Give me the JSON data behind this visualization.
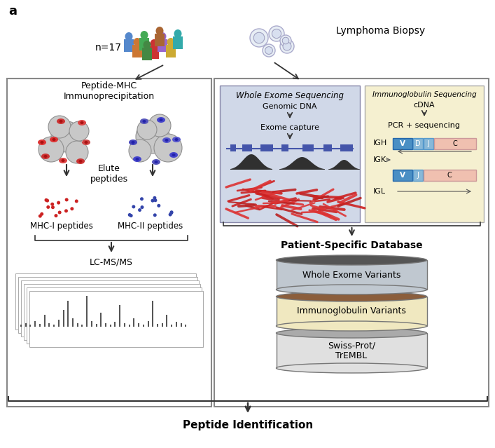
{
  "bg_color": "#ffffff",
  "panel_label": "a",
  "title_bottom": "Peptide Identification",
  "n_label": "n=17",
  "lymphoma_label": "Lymphoma Biopsy",
  "left_box_title": "Peptide-MHC\nImmunoprecipitation",
  "elute_label": "Elute\npeptides",
  "mhc1_label": "MHC-I peptides",
  "mhc2_label": "MHC-II peptides",
  "lcms_label": "LC-MS/MS",
  "wes_title": "Whole Exome Sequencing",
  "wes_line1": "Genomic DNA",
  "wes_line2": "Exome capture",
  "wes_bg": "#d0d8e8",
  "ig_title": "Immunoglobulin Sequencing",
  "ig_line1": "cDNA",
  "ig_line2": "PCR + sequencing",
  "ig_bg": "#f5f0d0",
  "igh": "IGH",
  "igk": "IGK",
  "igl": "IGL",
  "db_title": "Patient-Specific Database",
  "db_layer1": "Whole Exome Variants",
  "db_layer2": "Immunoglobulin Variants",
  "db_layer3": "Swiss-Prot/\nTrEMBL",
  "db_color1_top": "#555555",
  "db_color1_body": "#c0c8d0",
  "db_color2_top": "#8b5e3c",
  "db_color2_body": "#f0e8c0",
  "db_color3_top": "#aaaaaa",
  "db_color3_body": "#e0e0e0",
  "arrow_color": "#333333",
  "dot_red": "#cc2222",
  "dot_blue": "#3344aa",
  "people_colors": [
    "#5588cc",
    "#cc7733",
    "#44aa55",
    "#cc3333",
    "#9966cc",
    "#ccaa33",
    "#33aaaa",
    "#aa6633",
    "#448844"
  ],
  "v_color": "#4a8fc4",
  "dj_color": "#88b8d8",
  "c_color": "#f0c0b0"
}
